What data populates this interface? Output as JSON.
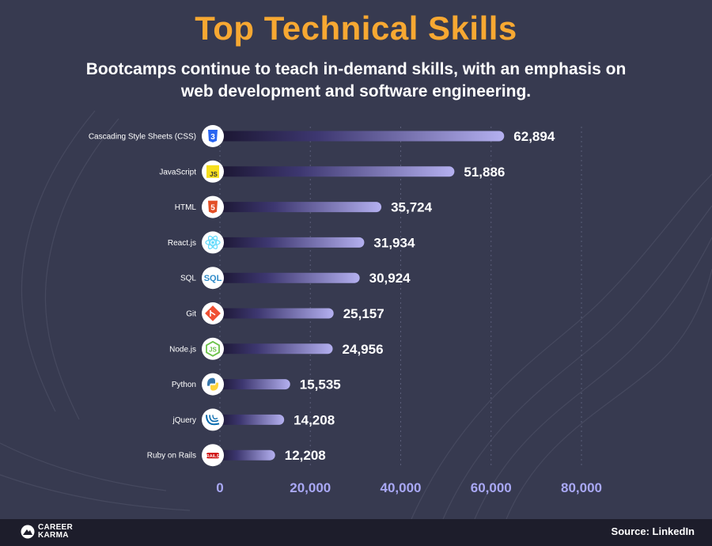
{
  "title": "Top Technical Skills",
  "subtitle": "Bootcamps continue to teach in-demand skills, with an emphasis on web development and software engineering.",
  "footer": {
    "logo_text": "CAREER\nKARMA",
    "source": "Source: LinkedIn"
  },
  "colors": {
    "background": "#373a50",
    "title": "#f7a832",
    "bar_start": "#1a1530",
    "bar_end": "#b4b0f0",
    "tick_label": "#a9a8f5"
  },
  "chart_data": {
    "type": "bar",
    "orientation": "horizontal",
    "categories": [
      "Cascading Style Sheets (CSS)",
      "JavaScript",
      "HTML",
      "React.js",
      "SQL",
      "Git",
      "Node.js",
      "Python",
      "jQuery",
      "Ruby on Rails"
    ],
    "values": [
      62894,
      51886,
      35724,
      31934,
      30924,
      25157,
      24956,
      15535,
      14208,
      12208
    ],
    "value_labels": [
      "62,894",
      "51,886",
      "35,724",
      "31,934",
      "30,924",
      "25,157",
      "24,956",
      "15,535",
      "14,208",
      "12,208"
    ],
    "icons": [
      "css3-icon",
      "javascript-icon",
      "html5-icon",
      "react-icon",
      "sql-icon",
      "git-icon",
      "nodejs-icon",
      "python-icon",
      "jquery-icon",
      "rails-icon"
    ],
    "xlim": [
      0,
      80000
    ],
    "xticks": [
      0,
      20000,
      40000,
      60000,
      80000
    ],
    "xtick_labels": [
      "0",
      "20,000",
      "40,000",
      "60,000",
      "80,000"
    ],
    "grid": true
  }
}
